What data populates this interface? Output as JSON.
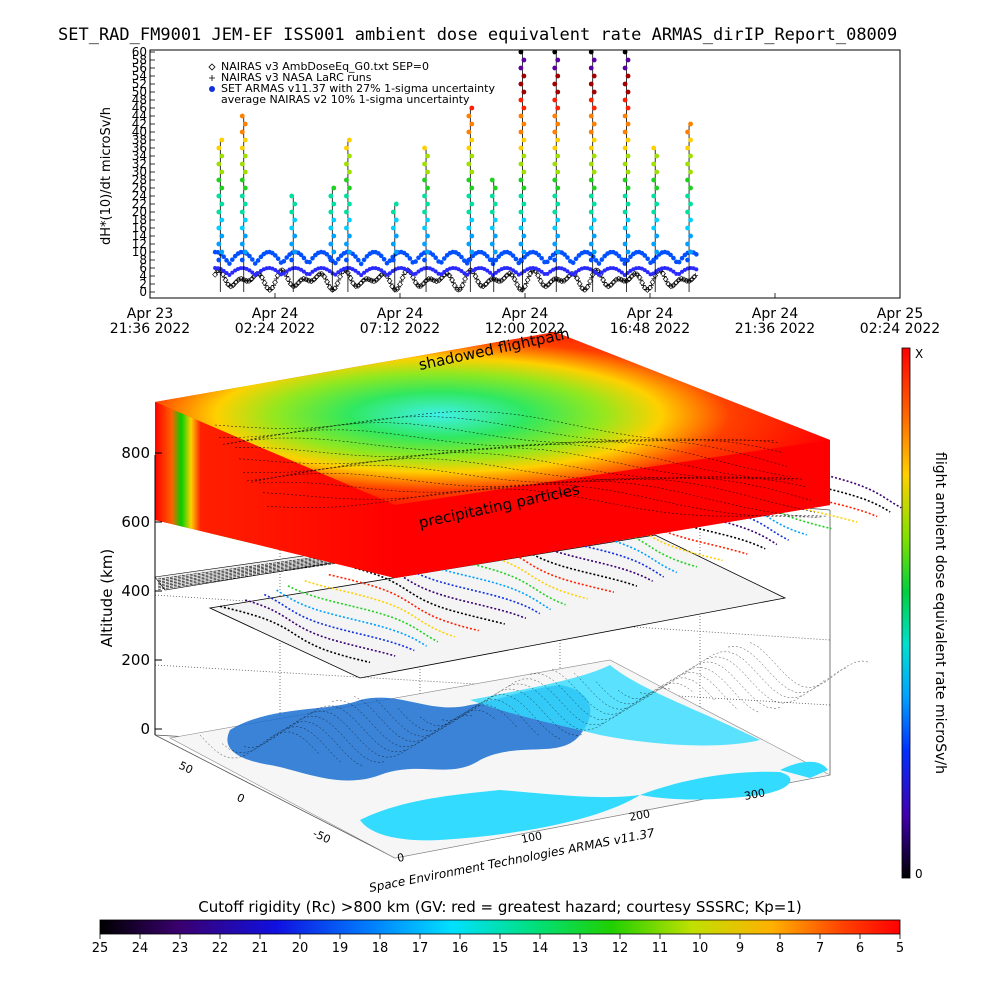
{
  "title": "SET_RAD_FM9001  JEM-EF ISS001 ambient dose equivalent rate ARMAS_dirIP_Report_08009",
  "top_chart": {
    "ylabel": "dH*(10)/dt microSv/h",
    "y_ticks": [
      "0",
      "2",
      "4",
      "6",
      "8",
      "10",
      "12",
      "14",
      "16",
      "18",
      "20",
      "22",
      "24",
      "26",
      "28",
      "30",
      "32",
      "34",
      "36",
      "38",
      "40",
      "42",
      "44",
      "46",
      "48",
      "50",
      "52",
      "54",
      "56",
      "58",
      "60"
    ],
    "x_ticks": [
      {
        "line1": "Apr 23",
        "line2": "21:36 2022"
      },
      {
        "line1": "Apr 24",
        "line2": "02:24 2022"
      },
      {
        "line1": "Apr 24",
        "line2": "07:12 2022"
      },
      {
        "line1": "Apr 24",
        "line2": "12:00 2022"
      },
      {
        "line1": "Apr 24",
        "line2": "16:48 2022"
      },
      {
        "line1": "Apr 24",
        "line2": "21:36 2022"
      },
      {
        "line1": "Apr 25",
        "line2": "02:24 2022"
      }
    ],
    "legend": [
      {
        "symbol": "diamond",
        "text": "NAIRAS v3 AmbDoseEq_G0.txt SEP=0"
      },
      {
        "symbol": "plus",
        "text": "NAIRAS v3 NASA LaRC runs"
      },
      {
        "symbol": "dot",
        "text": "SET ARMAS v11.37 with 27% 1-sigma uncertainty"
      },
      {
        "symbol": "none",
        "text": "average NAIRAS v2 10% 1-sigma uncertainty"
      }
    ]
  },
  "chart_data": [
    {
      "type": "scatter",
      "title": "SET_RAD_FM9001  JEM-EF ISS001 ambient dose equivalent rate ARMAS_dirIP_Report_08009",
      "ylabel": "dH*(10)/dt microSv/h",
      "ylim": [
        0,
        60
      ],
      "xlim": [
        "Apr 23 21:36 2022",
        "Apr 25 02:24 2022"
      ],
      "x_unit": "hours since Apr 23 21:36 2022",
      "data_range_hours": [
        2.5,
        21.0
      ],
      "series": [
        {
          "name": "NAIRAS v3 AmbDoseEq_G0.txt SEP=0",
          "marker": "diamond",
          "typical_range": [
            0,
            6
          ]
        },
        {
          "name": "NAIRAS v3 NASA LaRC runs",
          "marker": "plus",
          "typical_range": [
            0,
            6
          ]
        },
        {
          "name": "SET ARMAS v11.37 with 27% 1-sigma uncertainty",
          "marker": "dot",
          "spikes": [
            {
              "x": 2.7,
              "peak": 38
            },
            {
              "x": 3.6,
              "peak": 44
            },
            {
              "x": 5.5,
              "peak": 24
            },
            {
              "x": 7.0,
              "peak": 26
            },
            {
              "x": 7.6,
              "peak": 38
            },
            {
              "x": 9.4,
              "peak": 22
            },
            {
              "x": 10.6,
              "peak": 36
            },
            {
              "x": 12.3,
              "peak": 46
            },
            {
              "x": 13.2,
              "peak": 28
            },
            {
              "x": 14.3,
              "peak": 60
            },
            {
              "x": 15.6,
              "peak": 60
            },
            {
              "x": 17.0,
              "peak": 60
            },
            {
              "x": 18.3,
              "peak": 60
            },
            {
              "x": 19.4,
              "peak": 36
            },
            {
              "x": 20.7,
              "peak": 42
            }
          ]
        }
      ]
    },
    {
      "type": "heatmap",
      "title": "flight ambient dose equivalent rate microSv/h (3D altitude/longitude/latitude view)",
      "z_axis": {
        "label": "Altitude (km)",
        "ticks": [
          "0",
          "200",
          "400",
          "600",
          "800"
        ],
        "range": [
          0,
          900
        ]
      },
      "lon_ticks": [
        "0",
        "100",
        "200",
        "300"
      ],
      "lat_ticks": [
        "-50",
        "0",
        "50"
      ],
      "annotations": [
        "shadowed flightpath",
        "precipitating particles"
      ],
      "side_colorbar": {
        "label": "flight ambient dose equivalent rate microSv/h",
        "top": "X",
        "bottom": "0"
      },
      "bottom_colorbar": {
        "label": "Cutoff rigidity (Rc) >800 km (GV: red = greatest hazard; courtesy SSSRC; Kp=1)",
        "ticks": [
          "25",
          "24",
          "23",
          "22",
          "21",
          "20",
          "19",
          "18",
          "17",
          "16",
          "15",
          "14",
          "13",
          "12",
          "11",
          "10",
          "9",
          "8",
          "7",
          "6",
          "5"
        ]
      },
      "credit": "Space Environment Technologies ARMAS v11.37"
    }
  ],
  "colors": {
    "palette": [
      "#000000",
      "#3a005a",
      "#5a00a0",
      "#2020d0",
      "#0050ff",
      "#00a0ff",
      "#00e0ff",
      "#00e0a0",
      "#00d000",
      "#80e000",
      "#e0e000",
      "#ffb000",
      "#ff6000",
      "#ff0000"
    ],
    "map_land": "#1a6fd0",
    "map_sea": "#33dcff"
  }
}
